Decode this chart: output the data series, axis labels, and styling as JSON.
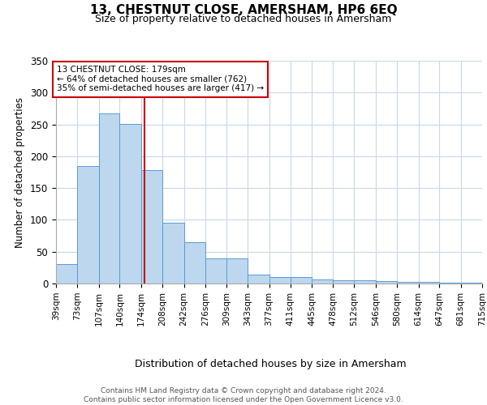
{
  "title": "13, CHESTNUT CLOSE, AMERSHAM, HP6 6EQ",
  "subtitle": "Size of property relative to detached houses in Amersham",
  "xlabel": "Distribution of detached houses by size in Amersham",
  "ylabel": "Number of detached properties",
  "bar_edges": [
    39,
    73,
    107,
    140,
    174,
    208,
    242,
    276,
    309,
    343,
    377,
    411,
    445,
    478,
    512,
    546,
    580,
    614,
    647,
    681,
    715
  ],
  "bar_heights": [
    30,
    185,
    267,
    251,
    178,
    96,
    65,
    40,
    39,
    14,
    10,
    10,
    6,
    5,
    5,
    4,
    3,
    3,
    1,
    1
  ],
  "bar_color": "#BDD7EE",
  "bar_edge_color": "#5B9BD5",
  "property_size": 179,
  "vline_color": "#CC0000",
  "annotation_box_color": "#CC0000",
  "annotation_text": "13 CHESTNUT CLOSE: 179sqm\n← 64% of detached houses are smaller (762)\n35% of semi-detached houses are larger (417) →",
  "ylim": [
    0,
    350
  ],
  "yticks": [
    0,
    50,
    100,
    150,
    200,
    250,
    300,
    350
  ],
  "tick_labels": [
    "39sqm",
    "73sqm",
    "107sqm",
    "140sqm",
    "174sqm",
    "208sqm",
    "242sqm",
    "276sqm",
    "309sqm",
    "343sqm",
    "377sqm",
    "411sqm",
    "445sqm",
    "478sqm",
    "512sqm",
    "546sqm",
    "580sqm",
    "614sqm",
    "647sqm",
    "681sqm",
    "715sqm"
  ],
  "footer": "Contains HM Land Registry data © Crown copyright and database right 2024.\nContains public sector information licensed under the Open Government Licence v3.0.",
  "background_color": "#FFFFFF",
  "grid_color": "#C8D8E8"
}
